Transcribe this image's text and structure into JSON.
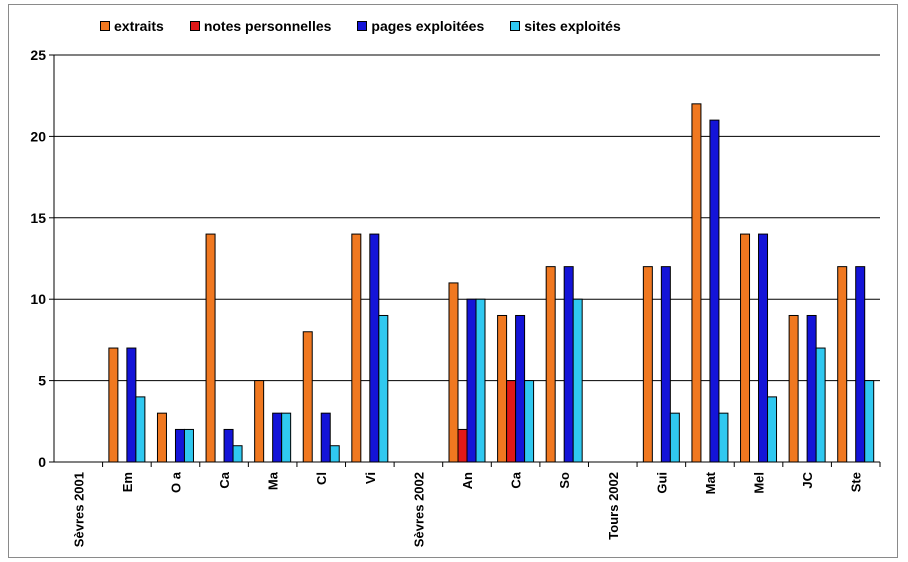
{
  "chart_data": {
    "type": "bar",
    "categories": [
      "Sèvres 2001",
      "Em",
      "O a",
      "Ca",
      "Ma",
      "Cl",
      "Vi",
      "Sèvres 2002",
      "An",
      "Ca",
      "So",
      "Tours 2002",
      "Gui",
      "Mat",
      "Mel",
      "JC",
      "Ste"
    ],
    "series": [
      {
        "name": "extraits",
        "color": "#f07820",
        "values": [
          0,
          7,
          3,
          14,
          5,
          8,
          14,
          0,
          11,
          9,
          12,
          0,
          12,
          22,
          14,
          9,
          12
        ]
      },
      {
        "name": "notes personnelles",
        "color": "#e01818",
        "values": [
          0,
          0,
          0,
          0,
          0,
          0,
          0,
          0,
          2,
          5,
          0,
          0,
          0,
          0,
          0,
          0,
          0
        ]
      },
      {
        "name": "pages exploitées",
        "color": "#1414d8",
        "values": [
          0,
          7,
          2,
          2,
          3,
          3,
          14,
          0,
          10,
          9,
          12,
          0,
          12,
          21,
          14,
          9,
          12
        ]
      },
      {
        "name": "sites exploités",
        "color": "#30c8f0",
        "values": [
          0,
          4,
          2,
          1,
          3,
          1,
          9,
          0,
          10,
          5,
          10,
          0,
          3,
          3,
          4,
          7,
          5
        ]
      }
    ],
    "ylim": [
      0,
      25
    ],
    "yticks": [
      0,
      5,
      10,
      15,
      20,
      25
    ],
    "grid": true,
    "legend": "top"
  }
}
